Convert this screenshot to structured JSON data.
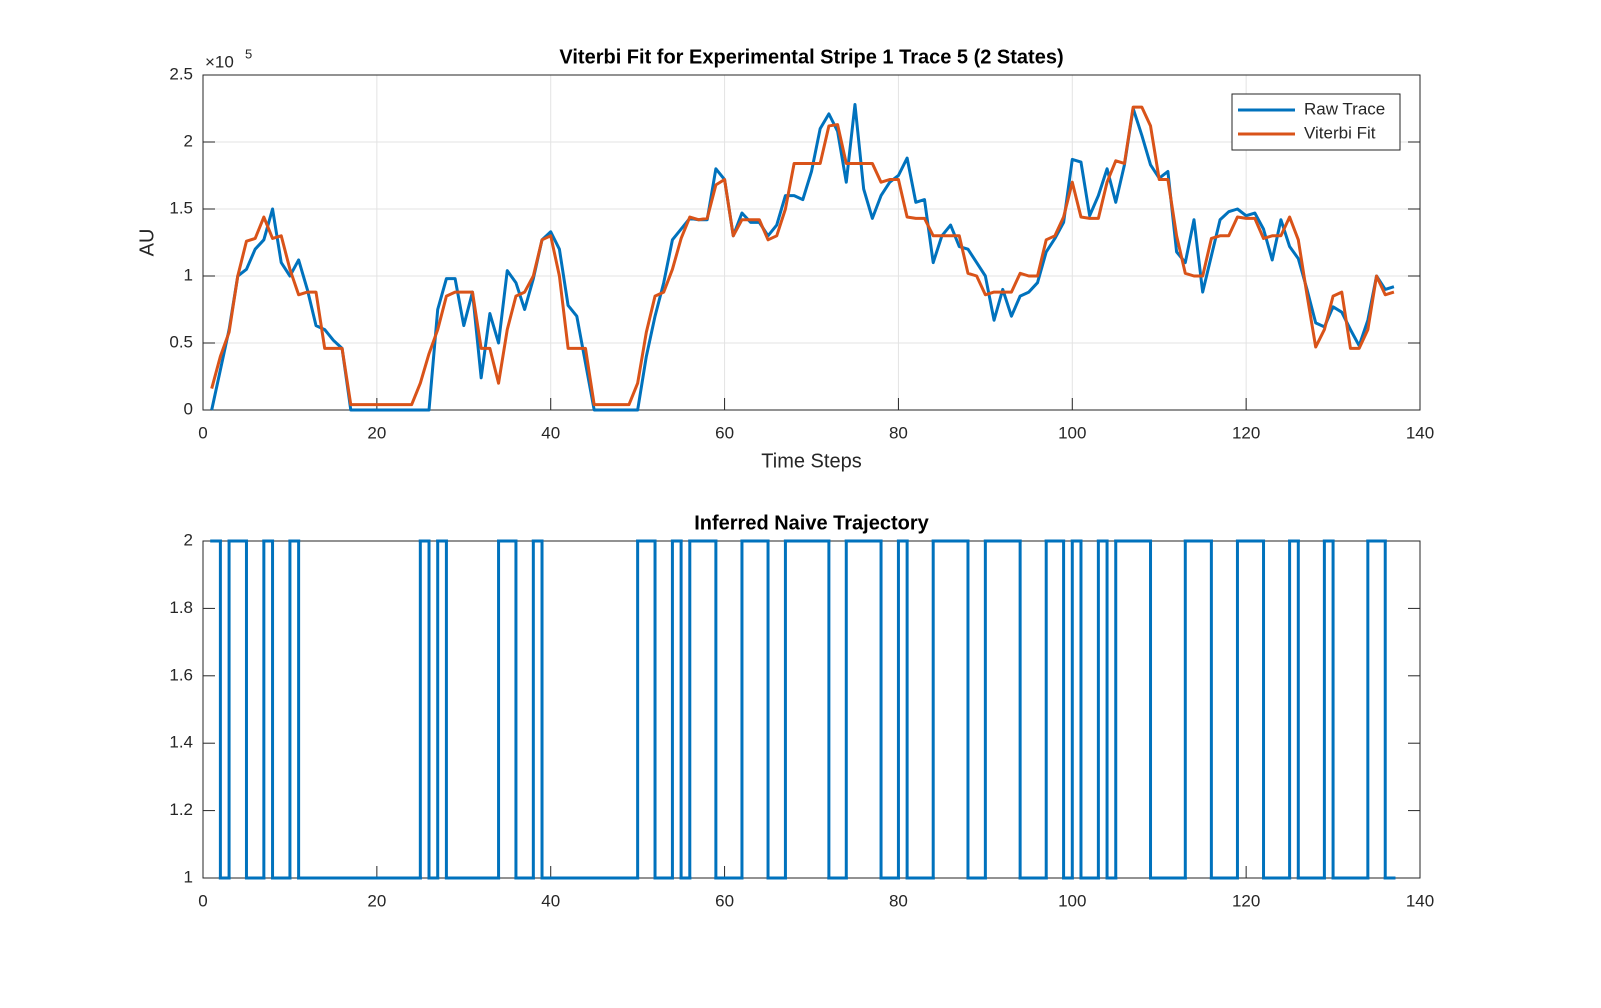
{
  "chart_data": [
    {
      "type": "line",
      "title": "Viterbi Fit for Experimental Stripe 1 Trace 5 (2 States)",
      "xlabel": "Time Steps",
      "ylabel": "AU",
      "y_exponent_base": "×10",
      "y_exponent": "5",
      "x": [
        1,
        2,
        3,
        4,
        5,
        6,
        7,
        8,
        9,
        10,
        11,
        12,
        13,
        14,
        15,
        16,
        17,
        18,
        19,
        20,
        21,
        22,
        23,
        24,
        25,
        26,
        27,
        28,
        29,
        30,
        31,
        32,
        33,
        34,
        35,
        36,
        37,
        38,
        39,
        40,
        41,
        42,
        43,
        44,
        45,
        46,
        47,
        48,
        49,
        50,
        51,
        52,
        53,
        54,
        55,
        56,
        57,
        58,
        59,
        60,
        61,
        62,
        63,
        64,
        65,
        66,
        67,
        68,
        69,
        70,
        71,
        72,
        73,
        74,
        75,
        76,
        77,
        78,
        79,
        80,
        81,
        82,
        83,
        84,
        85,
        86,
        87,
        88,
        89,
        90,
        91,
        92,
        93,
        94,
        95,
        96,
        97,
        98,
        99,
        100,
        101,
        102,
        103,
        104,
        105,
        106,
        107,
        108,
        109,
        110,
        111,
        112,
        113,
        114,
        115,
        116,
        117,
        118,
        119,
        120,
        121,
        122,
        123,
        124,
        125,
        126,
        127,
        128,
        129,
        130,
        131,
        132,
        133,
        134,
        135,
        136,
        137
      ],
      "series": [
        {
          "name": "Raw Trace",
          "color": "#0072BD",
          "values": [
            0,
            0.3,
            0.6,
            1.0,
            1.05,
            1.2,
            1.27,
            1.5,
            1.1,
            1.0,
            1.12,
            0.9,
            0.63,
            0.6,
            0.52,
            0.46,
            0,
            0,
            0,
            0,
            0,
            0,
            0,
            0,
            0,
            0,
            0.75,
            0.98,
            0.98,
            0.63,
            0.88,
            0.24,
            0.72,
            0.5,
            1.04,
            0.95,
            0.75,
            0.98,
            1.27,
            1.33,
            1.2,
            0.78,
            0.7,
            0.35,
            0,
            0,
            0,
            0,
            0,
            0,
            0.4,
            0.7,
            0.95,
            1.27,
            1.35,
            1.43,
            1.42,
            1.42,
            1.8,
            1.72,
            1.3,
            1.47,
            1.4,
            1.4,
            1.3,
            1.38,
            1.6,
            1.6,
            1.57,
            1.78,
            2.1,
            2.21,
            2.08,
            1.7,
            2.28,
            1.65,
            1.43,
            1.6,
            1.7,
            1.75,
            1.88,
            1.55,
            1.57,
            1.1,
            1.3,
            1.38,
            1.22,
            1.2,
            1.1,
            1.0,
            0.67,
            0.9,
            0.7,
            0.85,
            0.88,
            0.95,
            1.18,
            1.28,
            1.4,
            1.87,
            1.85,
            1.45,
            1.6,
            1.8,
            1.55,
            1.83,
            2.25,
            2.05,
            1.83,
            1.73,
            1.78,
            1.18,
            1.1,
            1.42,
            0.88,
            1.15,
            1.42,
            1.48,
            1.5,
            1.45,
            1.47,
            1.35,
            1.12,
            1.42,
            1.22,
            1.13,
            0.9,
            0.65,
            0.62,
            0.77,
            0.73,
            0.6,
            0.48,
            0.67,
            1.0,
            0.9,
            0.92
          ]
        },
        {
          "name": "Viterbi Fit",
          "color": "#D95319",
          "values": [
            0.16,
            0.4,
            0.58,
            1.0,
            1.26,
            1.28,
            1.44,
            1.28,
            1.3,
            1.05,
            0.86,
            0.88,
            0.88,
            0.46,
            0.46,
            0.46,
            0.04,
            0.04,
            0.04,
            0.04,
            0.04,
            0.04,
            0.04,
            0.04,
            0.2,
            0.42,
            0.6,
            0.85,
            0.88,
            0.88,
            0.88,
            0.46,
            0.46,
            0.2,
            0.6,
            0.85,
            0.88,
            1.0,
            1.27,
            1.3,
            1.0,
            0.46,
            0.46,
            0.46,
            0.04,
            0.04,
            0.04,
            0.04,
            0.04,
            0.2,
            0.58,
            0.85,
            0.88,
            1.05,
            1.28,
            1.44,
            1.42,
            1.43,
            1.68,
            1.72,
            1.3,
            1.42,
            1.42,
            1.42,
            1.27,
            1.3,
            1.5,
            1.84,
            1.84,
            1.84,
            1.84,
            2.12,
            2.13,
            1.84,
            1.84,
            1.84,
            1.84,
            1.7,
            1.72,
            1.72,
            1.44,
            1.43,
            1.43,
            1.3,
            1.3,
            1.3,
            1.3,
            1.02,
            1.0,
            0.86,
            0.88,
            0.88,
            0.88,
            1.02,
            1.0,
            1.0,
            1.27,
            1.3,
            1.44,
            1.7,
            1.44,
            1.43,
            1.43,
            1.7,
            1.86,
            1.84,
            2.26,
            2.26,
            2.12,
            1.72,
            1.72,
            1.3,
            1.02,
            1.0,
            1.0,
            1.28,
            1.3,
            1.3,
            1.44,
            1.43,
            1.43,
            1.28,
            1.3,
            1.3,
            1.44,
            1.27,
            0.86,
            0.47,
            0.6,
            0.85,
            0.88,
            0.46,
            0.46,
            0.6,
            1.0,
            0.86,
            0.88
          ]
        }
      ],
      "xlim": [
        0,
        140
      ],
      "xticks": [
        0,
        20,
        40,
        60,
        80,
        100,
        120,
        140
      ],
      "ylim": [
        0,
        2.5
      ],
      "yticks": [
        0,
        0.5,
        1,
        1.5,
        2,
        2.5
      ],
      "grid": true,
      "legend": "northeast"
    },
    {
      "type": "step",
      "title": "Inferred Naive Trajectory",
      "color": "#0072BD",
      "x": [
        1,
        2,
        3,
        4,
        5,
        6,
        7,
        8,
        9,
        10,
        11,
        12,
        13,
        14,
        15,
        16,
        17,
        18,
        19,
        20,
        21,
        22,
        23,
        24,
        25,
        26,
        27,
        28,
        29,
        30,
        31,
        32,
        33,
        34,
        35,
        36,
        37,
        38,
        39,
        40,
        41,
        42,
        43,
        44,
        45,
        46,
        47,
        48,
        49,
        50,
        51,
        52,
        53,
        54,
        55,
        56,
        57,
        58,
        59,
        60,
        61,
        62,
        63,
        64,
        65,
        66,
        67,
        68,
        69,
        70,
        71,
        72,
        73,
        74,
        75,
        76,
        77,
        78,
        79,
        80,
        81,
        82,
        83,
        84,
        85,
        86,
        87,
        88,
        89,
        90,
        91,
        92,
        93,
        94,
        95,
        96,
        97,
        98,
        99,
        100,
        101,
        102,
        103,
        104,
        105,
        106,
        107,
        108,
        109,
        110,
        111,
        112,
        113,
        114,
        115,
        116,
        117,
        118,
        119,
        120,
        121,
        122,
        123,
        124,
        125,
        126,
        127,
        128,
        129,
        130,
        131,
        132,
        133,
        134,
        135,
        136,
        137
      ],
      "values": [
        2,
        1,
        2,
        2,
        1,
        1,
        2,
        1,
        1,
        2,
        1,
        1,
        1,
        1,
        1,
        1,
        1,
        1,
        1,
        1,
        1,
        1,
        1,
        1,
        2,
        1,
        2,
        1,
        1,
        1,
        1,
        1,
        1,
        2,
        2,
        1,
        1,
        2,
        1,
        1,
        1,
        1,
        1,
        1,
        1,
        1,
        1,
        1,
        1,
        2,
        2,
        1,
        1,
        2,
        1,
        2,
        2,
        2,
        1,
        1,
        1,
        2,
        2,
        2,
        1,
        1,
        2,
        2,
        2,
        2,
        2,
        1,
        1,
        2,
        2,
        2,
        2,
        1,
        1,
        2,
        1,
        1,
        1,
        2,
        2,
        2,
        2,
        1,
        1,
        2,
        2,
        2,
        2,
        1,
        1,
        1,
        2,
        2,
        1,
        2,
        1,
        1,
        2,
        1,
        2,
        2,
        2,
        2,
        1,
        1,
        1,
        1,
        2,
        2,
        2,
        1,
        1,
        1,
        2,
        2,
        2,
        1,
        1,
        1,
        2,
        1,
        1,
        1,
        2,
        1,
        1,
        1,
        1,
        2,
        2,
        1,
        1
      ],
      "xlim": [
        0,
        140
      ],
      "xticks": [
        0,
        20,
        40,
        60,
        80,
        100,
        120,
        140
      ],
      "ylim": [
        1,
        2
      ],
      "yticks": [
        1,
        1.2,
        1.4,
        1.6,
        1.8,
        2
      ],
      "grid": false
    }
  ]
}
